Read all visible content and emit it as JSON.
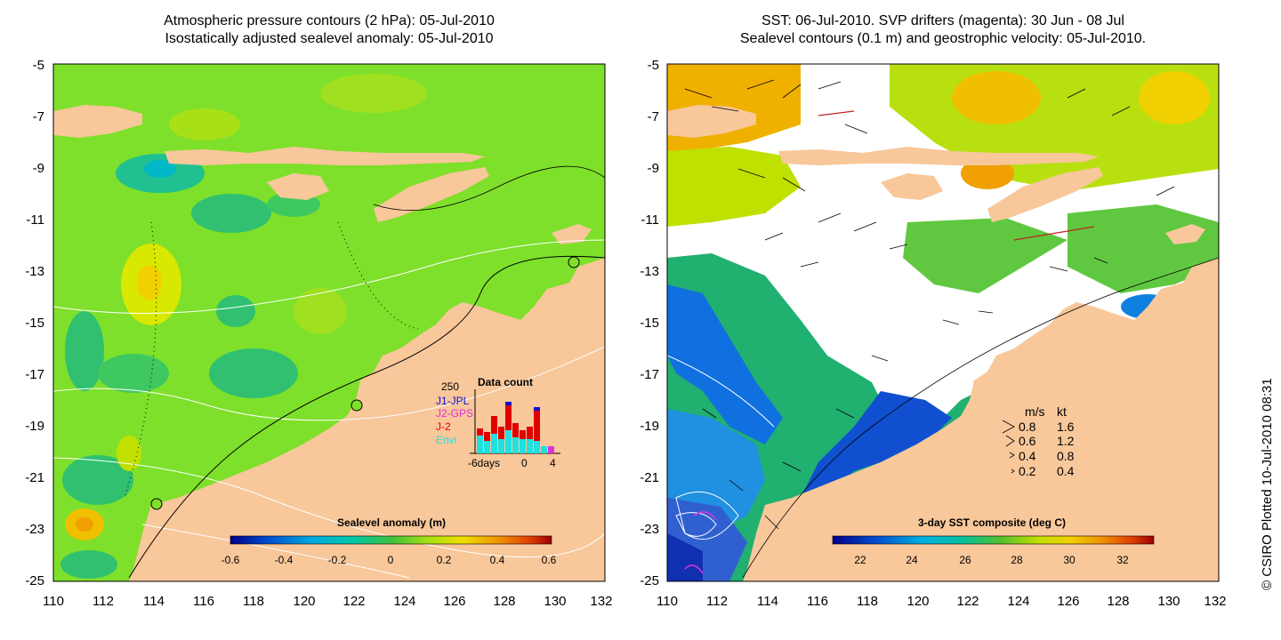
{
  "left_panel": {
    "title_line1": "Atmospheric pressure contours (2 hPa): 05-Jul-2010",
    "title_line2": "Isostatically adjusted sealevel anomaly: 05-Jul-2010",
    "colorbar": {
      "label": "Sealevel anomaly (m)",
      "ticks": [
        "-0.6",
        "-0.4",
        "-0.2",
        "0",
        "0.2",
        "0.4",
        "0.6"
      ],
      "colors": [
        "#00008b",
        "#0050d0",
        "#00a0e0",
        "#00c8c0",
        "#20b070",
        "#60d030",
        "#b0e000",
        "#e8e000",
        "#f0a000",
        "#e05000",
        "#a00000"
      ]
    },
    "data_count_inset": {
      "title": "Data count",
      "y_max_label": "250",
      "legend": [
        {
          "label": "J1-JPL",
          "color": "#1010d0"
        },
        {
          "label": "J2-GPS",
          "color": "#e030e0"
        },
        {
          "label": "J-2",
          "color": "#e00000"
        },
        {
          "label": "Envi",
          "color": "#20e0e0"
        }
      ],
      "x_tick_labels": [
        "-6days",
        "0",
        "4"
      ]
    },
    "colors": {
      "ocean_base": "#7ee02a",
      "land": "#f8c79a"
    }
  },
  "right_panel": {
    "title_line1": "SST: 06-Jul-2010. SVP drifters (magenta): 30 Jun - 08 Jul",
    "title_line2": "Sealevel contours (0.1 m) and geostrophic velocity: 05-Jul-2010.",
    "colorbar": {
      "label": "3-day SST composite (deg C)",
      "ticks": [
        "22",
        "24",
        "26",
        "28",
        "30",
        "32"
      ],
      "colors": [
        "#00008b",
        "#0040c0",
        "#0090e0",
        "#00c0c0",
        "#20b060",
        "#70d030",
        "#c0e000",
        "#f0d000",
        "#f09000",
        "#e04000",
        "#a00000"
      ]
    },
    "speed_legend": {
      "headers": [
        "m/s",
        "kt"
      ],
      "rows": [
        [
          "0.8",
          "1.6"
        ],
        [
          "0.6",
          "1.2"
        ],
        [
          "0.4",
          "0.8"
        ],
        [
          "0.2",
          "0.4"
        ]
      ]
    },
    "colors": {
      "cloud": "#ffffff",
      "land": "#f8c79a",
      "drifter": "#e030e0"
    }
  },
  "axes": {
    "y_ticks": [
      "-5",
      "-7",
      "-9",
      "-11",
      "-13",
      "-15",
      "-17",
      "-19",
      "-21",
      "-23",
      "-25"
    ],
    "x_ticks": [
      "110",
      "112",
      "114",
      "116",
      "118",
      "120",
      "122",
      "124",
      "126",
      "128",
      "130",
      "132"
    ]
  },
  "credit": "© CSIRO Plotted 10-Jul-2010 08:31"
}
